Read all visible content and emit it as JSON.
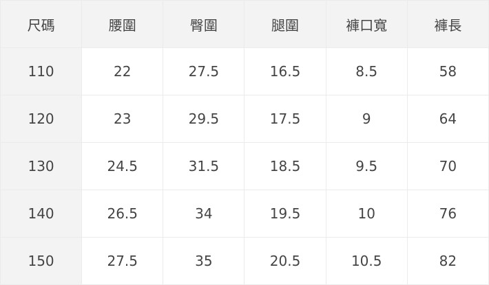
{
  "table": {
    "headers": [
      "尺碼",
      "腰圍",
      "臀圍",
      "腿圍",
      "褲口寬",
      "褲長"
    ],
    "rows": [
      [
        "110",
        "22",
        "27.5",
        "16.5",
        "8.5",
        "58"
      ],
      [
        "120",
        "23",
        "29.5",
        "17.5",
        "9",
        "64"
      ],
      [
        "130",
        "24.5",
        "31.5",
        "18.5",
        "9.5",
        "70"
      ],
      [
        "140",
        "26.5",
        "34",
        "19.5",
        "10",
        "76"
      ],
      [
        "150",
        "27.5",
        "35",
        "20.5",
        "10.5",
        "82"
      ]
    ]
  }
}
